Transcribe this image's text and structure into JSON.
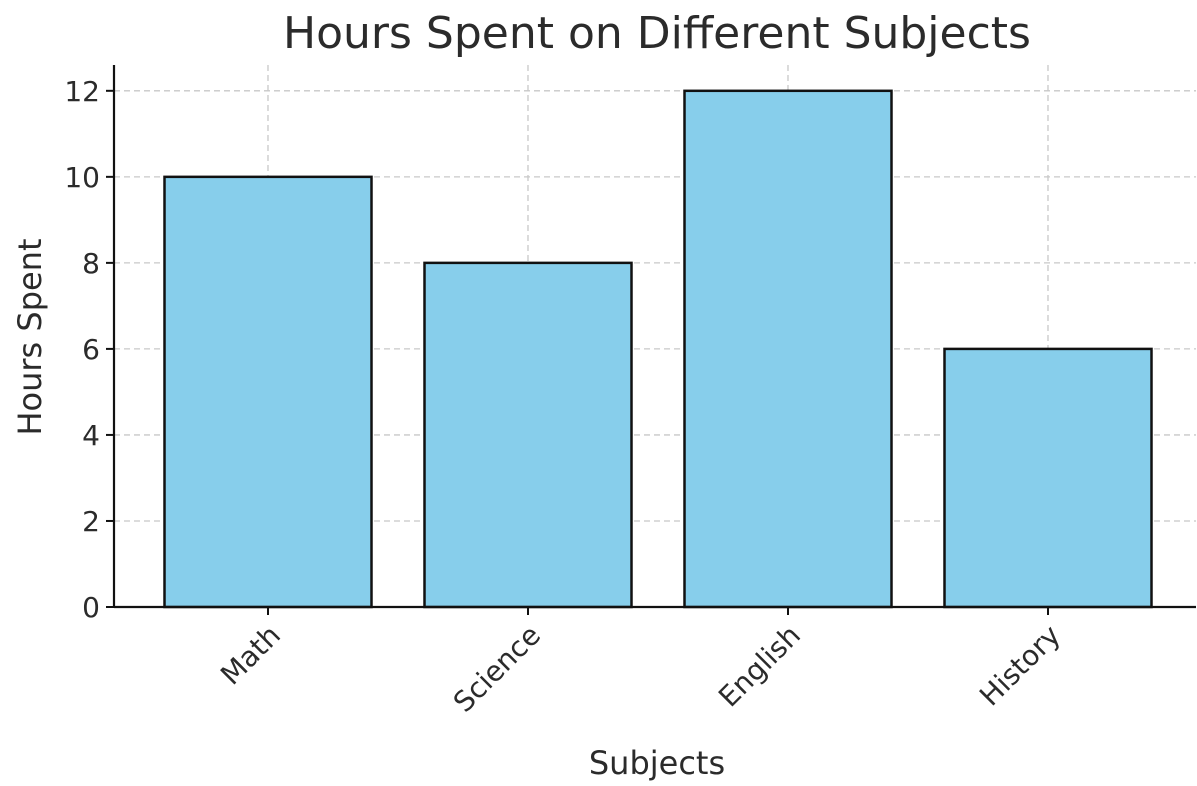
{
  "chart_data": {
    "type": "bar",
    "title": "Hours Spent on Different Subjects",
    "xlabel": "Subjects",
    "ylabel": "Hours Spent",
    "categories": [
      "Math",
      "Science",
      "English",
      "History"
    ],
    "values": [
      10,
      8,
      12,
      6
    ],
    "ylim": [
      0,
      12.6
    ],
    "yticks": [
      0,
      2,
      4,
      6,
      8,
      10,
      12
    ],
    "grid": true,
    "legend": "none",
    "bar_color": "#87CEEB",
    "bar_edge_color": "#111111",
    "grid_color": "#c8c8c8",
    "text_color": "#2b2b2b"
  }
}
